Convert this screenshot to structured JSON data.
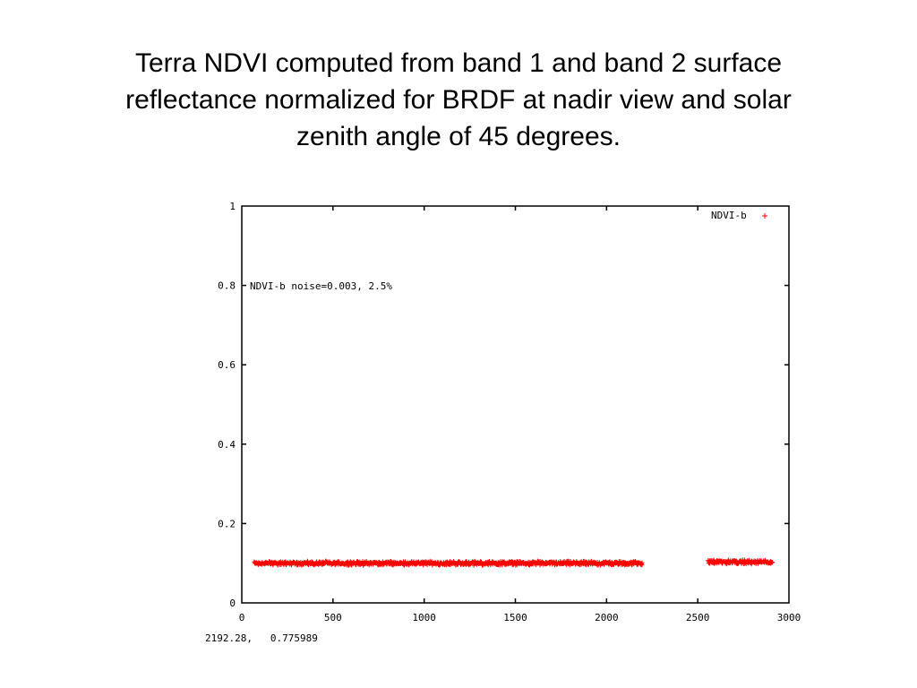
{
  "title_lines": [
    "Terra NDVI computed from band 1 and band 2 surface",
    "reflectance normalized for BRDF at nadir view and solar",
    "zenith angle of 45 degrees."
  ],
  "chart_data": {
    "type": "scatter",
    "title": "",
    "xlabel": "",
    "ylabel": "",
    "xlim": [
      0,
      3000
    ],
    "ylim": [
      0,
      1
    ],
    "x_ticks": [
      "0",
      "500",
      "1000",
      "1500",
      "2000",
      "2500",
      "3000"
    ],
    "y_ticks": [
      "0",
      "0.2",
      "0.4",
      "0.6",
      "0.8",
      "1"
    ],
    "grid": false,
    "legend_position": "top-right",
    "annotation": "NDVI-b noise=0.003, 2.5%",
    "coordinate_readout": "2192.28,   0.775989",
    "series": [
      {
        "name": "NDVI-b",
        "marker": "+",
        "color": "#ff0000",
        "segments": [
          {
            "x_start": 70,
            "x_end": 2195,
            "y_mean": 0.1
          },
          {
            "x_start": 2560,
            "x_end": 2910,
            "y_mean": 0.103
          }
        ],
        "noise": 0.003
      }
    ]
  }
}
